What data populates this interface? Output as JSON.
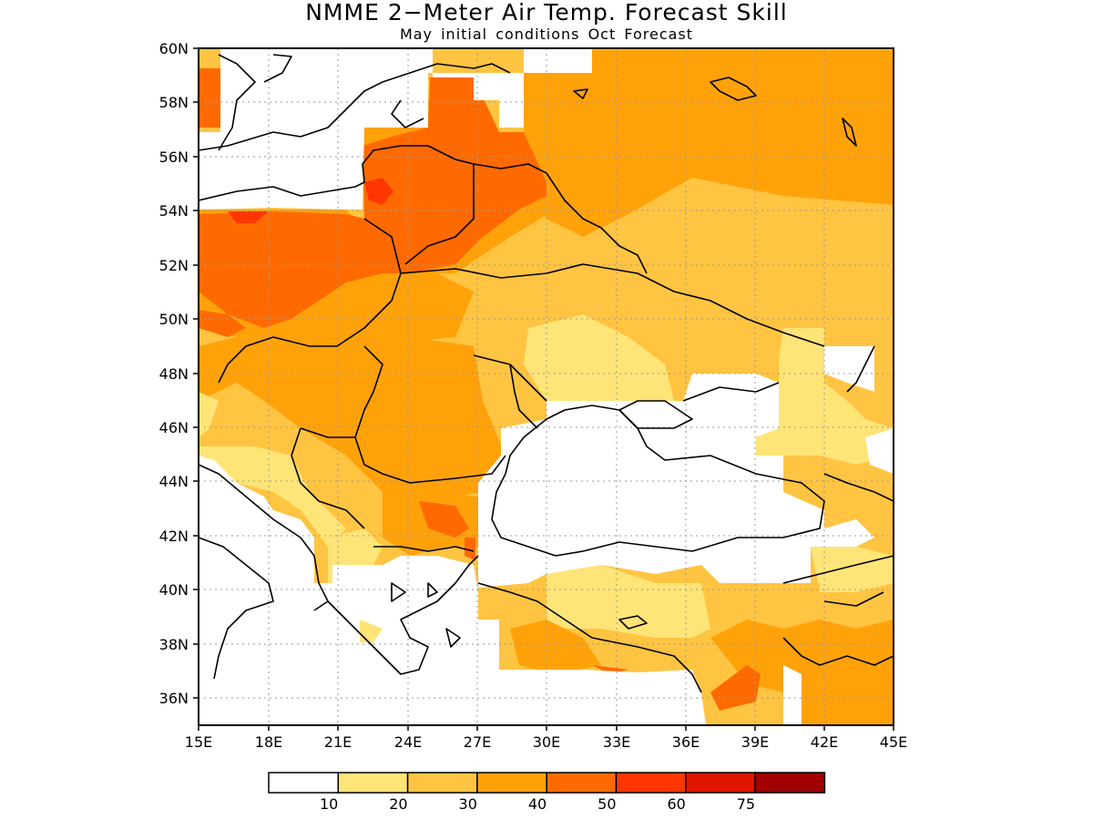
{
  "title": "NMME 2−Meter Air Temp. Forecast Skill",
  "subtitle": "May initial conditions   Oct Forecast",
  "axes": {
    "lat_labels": [
      "60N",
      "58N",
      "56N",
      "54N",
      "52N",
      "50N",
      "48N",
      "46N",
      "44N",
      "42N",
      "40N",
      "38N",
      "36N"
    ],
    "lon_labels": [
      "15E",
      "18E",
      "21E",
      "24E",
      "27E",
      "30E",
      "33E",
      "36E",
      "39E",
      "42E",
      "45E"
    ],
    "lat_range": [
      35,
      60
    ],
    "lon_range": [
      15,
      45
    ]
  },
  "colorbar": {
    "thresholds": [
      "10",
      "20",
      "30",
      "40",
      "50",
      "60",
      "75"
    ],
    "colors": [
      "#ffffff",
      "#ffe477",
      "#ffc441",
      "#ffa20a",
      "#ff6a00",
      "#ff3600",
      "#de1600",
      "#a00000"
    ]
  }
}
